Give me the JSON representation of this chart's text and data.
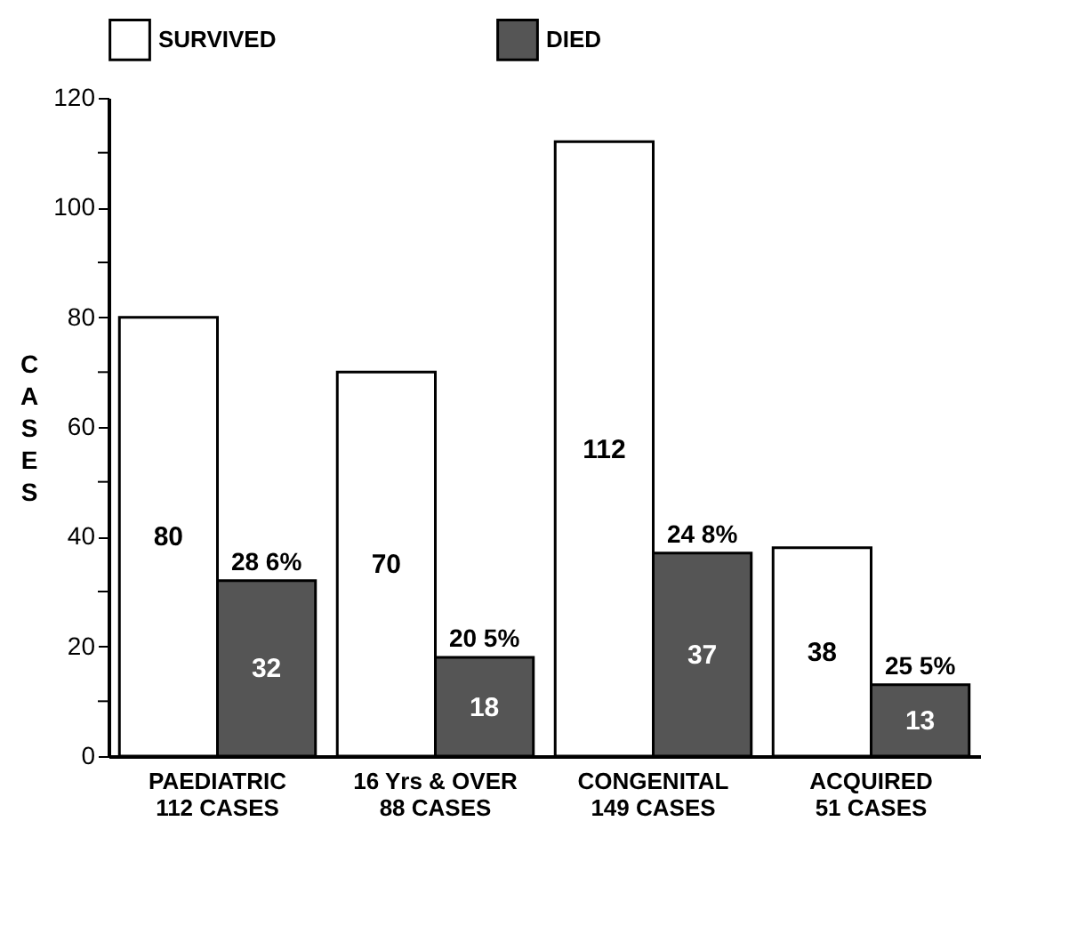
{
  "chart_data": {
    "type": "bar",
    "ylabel": "CASES",
    "categories": [
      "PAEDIATRIC\n112 CASES",
      "16 Yrs & OVER\n88 CASES",
      "CONGENITAL\n149 CASES",
      "ACQUIRED\n51 CASES"
    ],
    "series": [
      {
        "name": "SURVIVED",
        "color": "#ffffff",
        "values": [
          80,
          70,
          112,
          38
        ]
      },
      {
        "name": "DIED",
        "color": "#555555",
        "values": [
          32,
          18,
          37,
          13
        ]
      }
    ],
    "ylim": [
      0,
      120
    ],
    "yticks": [
      0,
      {
        "value": 10,
        "label": null
      },
      20,
      {
        "value": 30,
        "label": null
      },
      40,
      {
        "value": 50,
        "label": null
      },
      60,
      {
        "value": 70,
        "label": null
      },
      80,
      {
        "value": 90,
        "label": null
      },
      100,
      {
        "value": 110,
        "label": null
      },
      120
    ],
    "data_labels": true,
    "legend": "top",
    "grid": false,
    "annotations": [
      {
        "text": "28 6%",
        "x": "PAEDIATRIC\n112 CASES",
        "y": 32
      },
      {
        "text": "20 5%",
        "x": "16 Yrs & OVER\n88 CASES",
        "y": 18
      },
      {
        "text": "24 8%",
        "x": "CONGENITAL\n149 CASES",
        "y": 37
      },
      {
        "text": "25 5%",
        "x": "ACQUIRED\n51 CASES",
        "y": 13
      }
    ]
  }
}
